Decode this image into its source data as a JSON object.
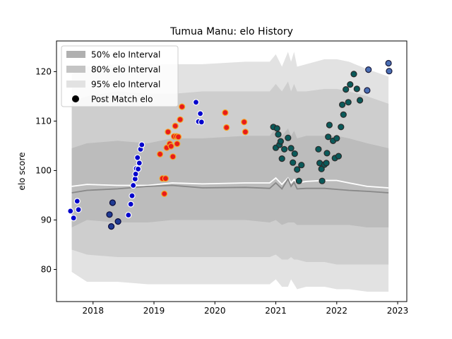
{
  "chart_data": {
    "type": "scatter",
    "title": "Tumua Manu: elo History",
    "xlabel": "",
    "ylabel": "elo score",
    "xlim": [
      2017.4,
      2023.15
    ],
    "ylim": [
      73.5,
      126.2
    ],
    "x_ticks": [
      2018,
      2019,
      2020,
      2021,
      2022,
      2023
    ],
    "x_tick_labels": [
      "2018",
      "2019",
      "2020",
      "2021",
      "2022",
      "2023"
    ],
    "y_ticks": [
      80,
      90,
      100,
      110,
      120
    ],
    "y_tick_labels": [
      "80",
      "90",
      "100",
      "110",
      "120"
    ],
    "grid": false,
    "legend_position": "top-left",
    "legend": [
      {
        "label": "50% elo Interval",
        "swatch": "#b0b0b0"
      },
      {
        "label": "80% elo Interval",
        "swatch": "#c4c4c4"
      },
      {
        "label": "95% elo Interval",
        "swatch": "#e2e2e2"
      },
      {
        "label": "Post Match elo",
        "swatch": "#000000"
      }
    ],
    "band_x": [
      2017.65,
      2017.9,
      2018.4,
      2018.9,
      2019.3,
      2019.8,
      2020.5,
      2020.9,
      2021.0,
      2021.1,
      2021.2,
      2021.25,
      2021.3,
      2021.35,
      2021.5,
      2021.8,
      2022.0,
      2022.2,
      2022.5,
      2022.85
    ],
    "band_95_upper": [
      119.5,
      121.0,
      121.5,
      121.5,
      121.5,
      121.5,
      122.0,
      122.0,
      123.5,
      121.0,
      124.0,
      122.0,
      124.0,
      121.0,
      121.5,
      122.5,
      122.5,
      122.0,
      120.5,
      119.0
    ],
    "band_95_lower": [
      79.5,
      77.5,
      77.5,
      77.0,
      77.0,
      77.0,
      77.0,
      77.0,
      78.0,
      76.5,
      76.5,
      78.0,
      77.0,
      76.0,
      76.5,
      76.5,
      76.0,
      76.0,
      75.5,
      75.5
    ],
    "band_80_upper": [
      114.0,
      115.0,
      116.0,
      115.5,
      115.5,
      116.0,
      116.0,
      116.0,
      117.5,
      116.0,
      118.0,
      116.0,
      117.5,
      116.0,
      116.0,
      116.5,
      116.5,
      116.0,
      115.0,
      113.5
    ],
    "band_80_lower": [
      84.0,
      83.0,
      82.5,
      82.5,
      82.5,
      82.5,
      82.5,
      82.5,
      83.0,
      82.0,
      82.0,
      82.5,
      82.0,
      82.0,
      81.5,
      81.5,
      81.0,
      81.0,
      81.0,
      81.0
    ],
    "band_50_upper": [
      104.5,
      105.5,
      106.0,
      105.5,
      106.5,
      106.5,
      107.0,
      107.0,
      108.5,
      107.0,
      108.5,
      107.0,
      108.0,
      106.5,
      107.0,
      107.0,
      107.0,
      106.5,
      105.5,
      104.5
    ],
    "band_50_lower": [
      88.5,
      90.0,
      89.5,
      89.5,
      90.0,
      90.0,
      90.0,
      89.5,
      90.0,
      89.0,
      89.5,
      89.5,
      89.5,
      89.0,
      89.0,
      89.0,
      89.0,
      89.0,
      88.5,
      88.5
    ],
    "median_line": [
      95.5,
      96.0,
      96.3,
      96.8,
      97.0,
      96.5,
      96.6,
      96.4,
      97.5,
      96.3,
      98.3,
      96.8,
      97.6,
      96.3,
      96.4,
      96.4,
      96.2,
      96.0,
      95.8,
      95.5
    ],
    "mean_line": [
      96.8,
      97.2,
      97.0,
      97.0,
      97.5,
      97.3,
      97.5,
      97.5,
      98.5,
      97.2,
      98.5,
      97.5,
      98.2,
      97.5,
      97.8,
      98.0,
      98.0,
      97.5,
      96.8,
      96.5
    ],
    "series": [
      {
        "fill": "#0000cc",
        "edge": "#ffffff",
        "points": [
          [
            2017.63,
            91.8
          ],
          [
            2017.68,
            90.4
          ],
          [
            2017.74,
            93.8
          ],
          [
            2017.76,
            92.1
          ],
          [
            2018.58,
            91.0
          ],
          [
            2018.62,
            93.2
          ],
          [
            2018.64,
            94.9
          ],
          [
            2018.66,
            97.0
          ],
          [
            2018.69,
            98.3
          ],
          [
            2018.7,
            99.3
          ],
          [
            2018.71,
            100.4
          ],
          [
            2018.73,
            102.6
          ],
          [
            2018.74,
            100.3
          ],
          [
            2018.76,
            101.5
          ],
          [
            2018.78,
            104.3
          ],
          [
            2018.8,
            105.2
          ],
          [
            2019.69,
            113.8
          ],
          [
            2019.73,
            109.9
          ],
          [
            2019.76,
            111.5
          ],
          [
            2019.78,
            109.8
          ]
        ]
      },
      {
        "fill": "#1f3a93",
        "edge": "#0a0a3a",
        "points": [
          [
            2018.27,
            91.1
          ],
          [
            2018.3,
            88.7
          ],
          [
            2018.32,
            93.5
          ],
          [
            2018.41,
            89.7
          ]
        ]
      },
      {
        "fill": "#e81b1b",
        "edge": "#f5a623",
        "points": [
          [
            2019.1,
            103.3
          ],
          [
            2019.14,
            98.4
          ],
          [
            2019.17,
            95.3
          ],
          [
            2019.19,
            98.4
          ],
          [
            2019.21,
            104.6
          ],
          [
            2019.23,
            107.8
          ],
          [
            2019.26,
            105.4
          ],
          [
            2019.28,
            104.9
          ],
          [
            2019.31,
            102.8
          ],
          [
            2019.33,
            106.9
          ],
          [
            2019.35,
            109.0
          ],
          [
            2019.37,
            106.9
          ],
          [
            2019.38,
            105.4
          ],
          [
            2019.4,
            106.8
          ],
          [
            2019.43,
            110.3
          ],
          [
            2019.46,
            112.9
          ],
          [
            2020.17,
            111.7
          ],
          [
            2020.19,
            108.7
          ],
          [
            2020.48,
            109.8
          ],
          [
            2020.5,
            107.8
          ]
        ]
      },
      {
        "fill": "#0a5a5a",
        "edge": "#2a2a2a",
        "points": [
          [
            2020.96,
            108.8
          ],
          [
            2021.0,
            104.6
          ],
          [
            2021.02,
            108.5
          ],
          [
            2021.04,
            107.3
          ],
          [
            2021.06,
            105.2
          ],
          [
            2021.08,
            105.9
          ],
          [
            2021.1,
            102.4
          ],
          [
            2021.14,
            104.3
          ],
          [
            2021.2,
            106.6
          ],
          [
            2021.25,
            104.5
          ],
          [
            2021.28,
            101.6
          ],
          [
            2021.31,
            103.4
          ],
          [
            2021.35,
            100.2
          ],
          [
            2021.38,
            97.9
          ],
          [
            2021.42,
            101.1
          ],
          [
            2021.7,
            104.3
          ],
          [
            2021.72,
            101.5
          ],
          [
            2021.75,
            100.3
          ],
          [
            2021.76,
            97.9
          ],
          [
            2021.8,
            101.2
          ],
          [
            2021.83,
            101.5
          ],
          [
            2021.84,
            103.5
          ],
          [
            2021.86,
            106.8
          ],
          [
            2021.88,
            109.2
          ],
          [
            2021.94,
            106.0
          ],
          [
            2021.97,
            102.5
          ],
          [
            2022.0,
            106.5
          ],
          [
            2022.03,
            102.9
          ],
          [
            2022.07,
            108.8
          ],
          [
            2022.09,
            113.3
          ],
          [
            2022.11,
            111.3
          ],
          [
            2022.15,
            116.4
          ],
          [
            2022.19,
            113.8
          ],
          [
            2022.22,
            117.4
          ],
          [
            2022.28,
            119.5
          ],
          [
            2022.33,
            116.5
          ],
          [
            2022.38,
            114.2
          ]
        ]
      },
      {
        "fill": "#4a6fb5",
        "edge": "#1a1a3a",
        "points": [
          [
            2022.52,
            120.4
          ],
          [
            2022.5,
            116.2
          ],
          [
            2022.85,
            121.7
          ],
          [
            2022.86,
            120.1
          ]
        ]
      }
    ]
  }
}
